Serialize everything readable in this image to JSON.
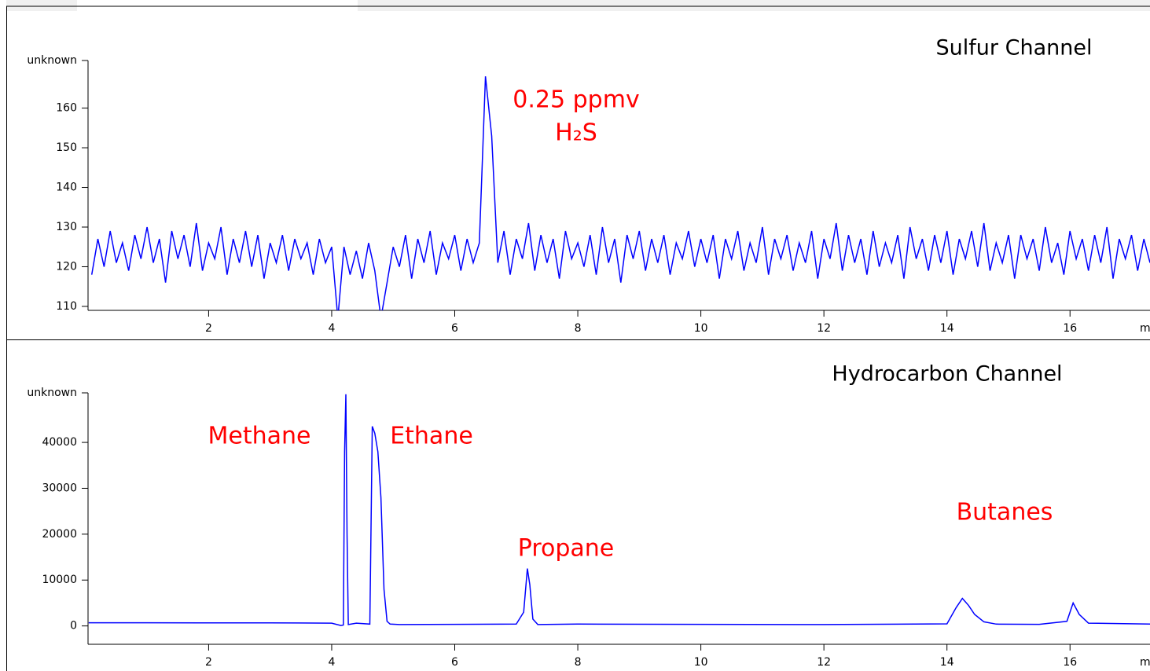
{
  "chart_data": [
    {
      "type": "line",
      "title": "Sulfur Channel",
      "y_label": "unknown",
      "x_label": "m",
      "annotations": [
        "0.25 ppmv",
        "H₂S"
      ],
      "xlim": [
        0.04,
        17.3
      ],
      "xticks": [
        2,
        4,
        6,
        8,
        10,
        12,
        14,
        16
      ],
      "ylim": [
        109,
        172
      ],
      "yticks": [
        110,
        120,
        130,
        140,
        150,
        160
      ],
      "color": "#0000ff",
      "x": [
        0.1,
        0.2,
        0.3,
        0.4,
        0.5,
        0.6,
        0.7,
        0.8,
        0.9,
        1.0,
        1.1,
        1.2,
        1.3,
        1.4,
        1.5,
        1.6,
        1.7,
        1.8,
        1.9,
        2.0,
        2.1,
        2.2,
        2.3,
        2.4,
        2.5,
        2.6,
        2.7,
        2.8,
        2.9,
        3.0,
        3.1,
        3.2,
        3.3,
        3.4,
        3.5,
        3.6,
        3.7,
        3.8,
        3.9,
        4.0,
        4.1,
        4.2,
        4.3,
        4.4,
        4.5,
        4.6,
        4.7,
        4.8,
        4.9,
        5.0,
        5.1,
        5.2,
        5.3,
        5.4,
        5.5,
        5.6,
        5.7,
        5.8,
        5.9,
        6.0,
        6.1,
        6.2,
        6.3,
        6.4,
        6.5,
        6.6,
        6.7,
        6.8,
        6.9,
        7.0,
        7.1,
        7.2,
        7.3,
        7.4,
        7.5,
        7.6,
        7.7,
        7.8,
        7.9,
        8.0,
        8.1,
        8.2,
        8.3,
        8.4,
        8.5,
        8.6,
        8.7,
        8.8,
        8.9,
        9.0,
        9.1,
        9.2,
        9.3,
        9.4,
        9.5,
        9.6,
        9.7,
        9.8,
        9.9,
        10.0,
        10.1,
        10.2,
        10.3,
        10.4,
        10.5,
        10.6,
        10.7,
        10.8,
        10.9,
        11.0,
        11.1,
        11.2,
        11.3,
        11.4,
        11.5,
        11.6,
        11.7,
        11.8,
        11.9,
        12.0,
        12.1,
        12.2,
        12.3,
        12.4,
        12.5,
        12.6,
        12.7,
        12.8,
        12.9,
        13.0,
        13.1,
        13.2,
        13.3,
        13.4,
        13.5,
        13.6,
        13.7,
        13.8,
        13.9,
        14.0,
        14.1,
        14.2,
        14.3,
        14.4,
        14.5,
        14.6,
        14.7,
        14.8,
        14.9,
        15.0,
        15.1,
        15.2,
        15.3,
        15.4,
        15.5,
        15.6,
        15.7,
        15.8,
        15.9,
        16.0,
        16.1,
        16.2,
        16.3,
        16.4,
        16.5,
        16.6,
        16.7,
        16.8,
        16.9,
        17.0,
        17.1,
        17.2,
        17.3
      ],
      "values": [
        118,
        127,
        120,
        129,
        121,
        126,
        119,
        128,
        122,
        130,
        121,
        127,
        116,
        129,
        122,
        128,
        120,
        131,
        119,
        126,
        122,
        130,
        118,
        127,
        121,
        129,
        120,
        128,
        117,
        126,
        121,
        128,
        119,
        127,
        122,
        126,
        118,
        127,
        121,
        125,
        107,
        125,
        118,
        124,
        117,
        126,
        119,
        107,
        116,
        125,
        120,
        128,
        117,
        127,
        121,
        129,
        118,
        126,
        122,
        128,
        119,
        127,
        121,
        126,
        168,
        153,
        121,
        129,
        118,
        127,
        122,
        131,
        119,
        128,
        121,
        127,
        117,
        129,
        122,
        126,
        120,
        128,
        118,
        130,
        121,
        127,
        116,
        128,
        122,
        129,
        119,
        127,
        121,
        128,
        118,
        126,
        122,
        129,
        120,
        127,
        121,
        128,
        117,
        127,
        122,
        129,
        119,
        126,
        121,
        130,
        118,
        127,
        122,
        128,
        119,
        126,
        121,
        129,
        117,
        127,
        122,
        131,
        119,
        128,
        121,
        127,
        118,
        129,
        120,
        126,
        121,
        128,
        117,
        130,
        122,
        127,
        119,
        128,
        121,
        129,
        118,
        127,
        122,
        129,
        120,
        131,
        119,
        126,
        121,
        128,
        117,
        128,
        122,
        127,
        119,
        130,
        121,
        126,
        118,
        129,
        122,
        127,
        119,
        128,
        121,
        130,
        117,
        127,
        122,
        128,
        119,
        127,
        121
      ]
    },
    {
      "type": "line",
      "title": "Hydrocarbon Channel",
      "y_label": "unknown",
      "x_label": "m",
      "annotations": [
        "Methane",
        "Ethane",
        "Propane",
        "Butanes"
      ],
      "xlim": [
        0.04,
        17.3
      ],
      "xticks": [
        2,
        4,
        6,
        8,
        10,
        12,
        14,
        16
      ],
      "ylim": [
        -4000,
        50800
      ],
      "yticks": [
        0,
        10000,
        20000,
        30000,
        40000
      ],
      "color": "#0000ff",
      "x": [
        0.05,
        1,
        2,
        3,
        4,
        4.15,
        4.19,
        4.21,
        4.23,
        4.25,
        4.27,
        4.4,
        4.62,
        4.66,
        4.7,
        4.75,
        4.8,
        4.85,
        4.9,
        4.95,
        5.1,
        6,
        7,
        7.12,
        7.18,
        7.22,
        7.27,
        7.35,
        8,
        10,
        12,
        14,
        14.15,
        14.25,
        14.35,
        14.45,
        14.6,
        14.8,
        15.5,
        15.95,
        16.05,
        16.15,
        16.3,
        17.3
      ],
      "values": [
        700,
        700,
        650,
        680,
        600,
        100,
        200,
        38000,
        50500,
        20000,
        300,
        600,
        400,
        43500,
        42000,
        38000,
        28000,
        8000,
        1000,
        400,
        300,
        350,
        400,
        3000,
        12500,
        9000,
        1500,
        300,
        400,
        350,
        300,
        450,
        4000,
        6000,
        4500,
        2500,
        900,
        400,
        350,
        1000,
        5000,
        2500,
        600,
        400
      ]
    }
  ]
}
